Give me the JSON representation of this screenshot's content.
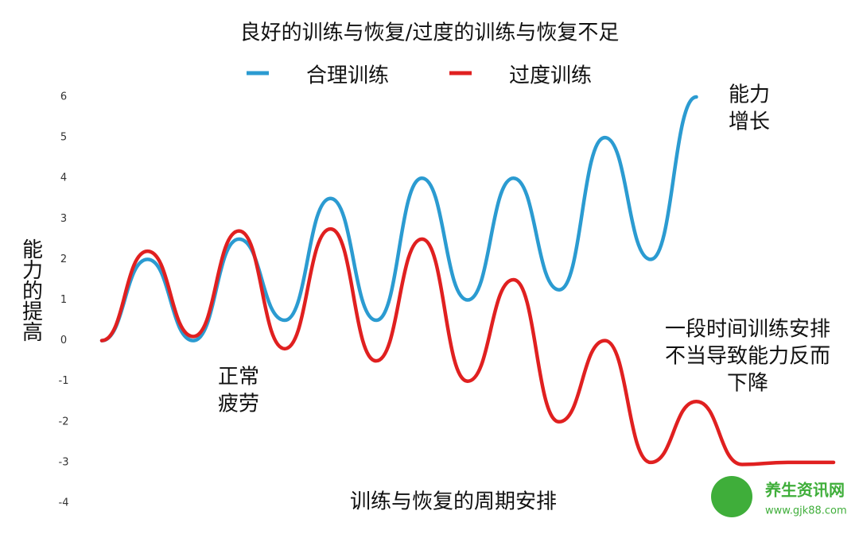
{
  "chart_data": {
    "type": "line",
    "title": "良好的训练与恢复/过度的训练与恢复不足",
    "x_label": "训练与恢复的周期安排",
    "y_label": "能力的提高",
    "ylim": [
      -4,
      6
    ],
    "yticks": [
      6,
      5,
      4,
      3,
      2,
      1,
      0,
      -1,
      -2,
      -3,
      -4
    ],
    "xlim": [
      0,
      16
    ],
    "legend": "top",
    "series": [
      {
        "name": "合理训练",
        "color": "#2b9bd1",
        "x": [
          0,
          1,
          2,
          3,
          4,
          5,
          6,
          7,
          8,
          9,
          10,
          11,
          12,
          13
        ],
        "values": [
          0,
          2,
          0,
          2.5,
          0.5,
          3.5,
          0.5,
          4,
          1,
          4,
          1.25,
          5,
          2,
          6
        ]
      },
      {
        "name": "过度训练",
        "color": "#e02020",
        "x": [
          0,
          1,
          2,
          3,
          4,
          5,
          6,
          7,
          8,
          9,
          10,
          11,
          12,
          13,
          14,
          15,
          16
        ],
        "values": [
          0,
          2.2,
          0.1,
          2.7,
          -0.2,
          2.75,
          -0.5,
          2.5,
          -1,
          1.5,
          -2,
          0,
          -3,
          -1.5,
          -3.05,
          -3,
          -3
        ]
      }
    ],
    "annotations": [
      {
        "lines": [
          "能力",
          "增长"
        ]
      },
      {
        "lines": [
          "正常",
          "疲劳"
        ]
      },
      {
        "lines": [
          "一段时间训练安排",
          "不当导致能力反而",
          "下降"
        ]
      }
    ],
    "watermark": {
      "name": "养生资讯网",
      "url": "www.gjk88.com"
    }
  }
}
